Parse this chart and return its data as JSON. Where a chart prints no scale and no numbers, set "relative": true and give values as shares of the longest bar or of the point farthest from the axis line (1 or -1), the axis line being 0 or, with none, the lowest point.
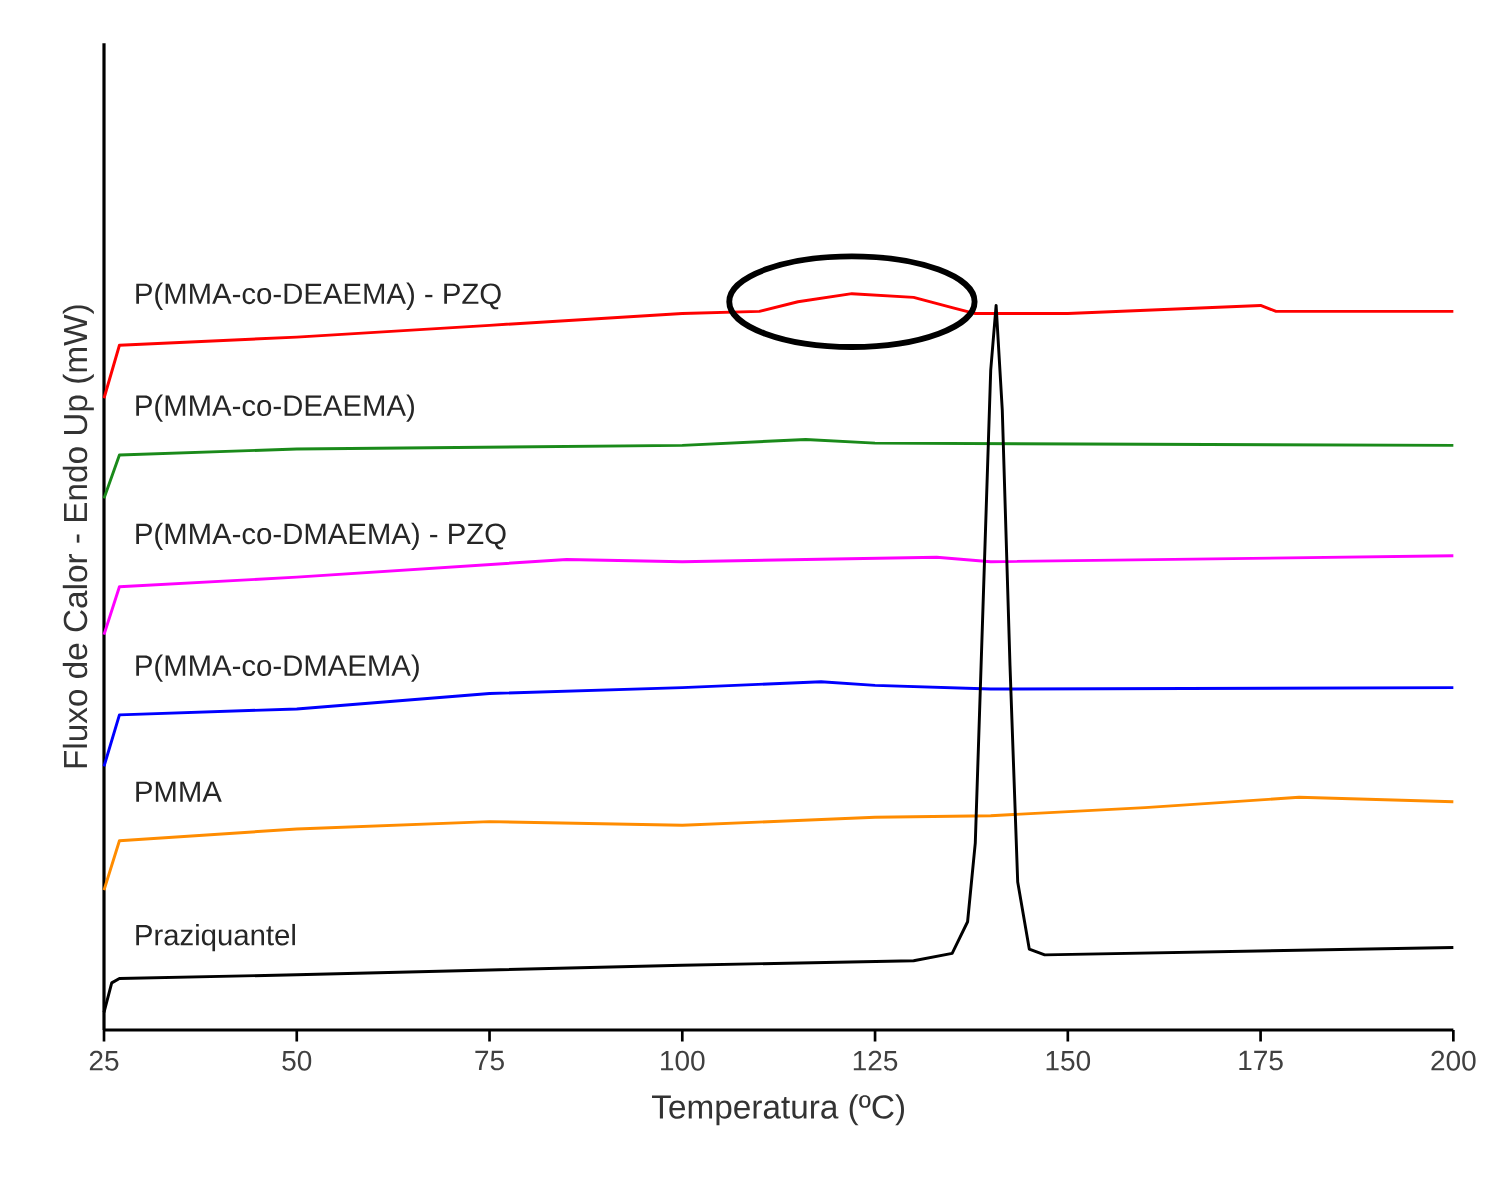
{
  "chart_data": {
    "type": "line",
    "relative": true,
    "xlabel": "Temperatura (ºC)",
    "ylabel": "Fluxo de Calor - Endo Up (mW)",
    "xlim": [
      25,
      200
    ],
    "xticks": [
      25,
      50,
      75,
      100,
      125,
      150,
      175,
      200
    ],
    "legend": false,
    "grid": false,
    "marker": "none",
    "line_style": "solid",
    "series": [
      {
        "name": "P(MMA-co-DEAEMA) - PZQ",
        "color": "#ff0000",
        "x": [
          25,
          27,
          50,
          75,
          100,
          110,
          115,
          122,
          130,
          135,
          138,
          150,
          175,
          177,
          200
        ],
        "values": [
          0.858,
          0.93,
          0.941,
          0.957,
          0.973,
          0.976,
          0.989,
          1.0,
          0.995,
          0.981,
          0.973,
          0.973,
          0.984,
          0.976,
          0.976
        ]
      },
      {
        "name": "P(MMA-co-DEAEMA)",
        "color": "#1a8a1a",
        "x": [
          25,
          27,
          50,
          100,
          116,
          125,
          200
        ],
        "values": [
          0.722,
          0.781,
          0.789,
          0.794,
          0.802,
          0.797,
          0.794
        ]
      },
      {
        "name": "P(MMA-co-DMAEMA) - PZQ",
        "color": "#ff00ff",
        "x": [
          25,
          27,
          50,
          85,
          100,
          133,
          140,
          200
        ],
        "values": [
          0.537,
          0.602,
          0.615,
          0.639,
          0.636,
          0.642,
          0.636,
          0.644
        ]
      },
      {
        "name": "P(MMA-co-DMAEMA)",
        "color": "#0000ff",
        "x": [
          25,
          27,
          50,
          75,
          100,
          118,
          125,
          140,
          200
        ],
        "values": [
          0.358,
          0.428,
          0.436,
          0.457,
          0.465,
          0.473,
          0.468,
          0.463,
          0.465
        ]
      },
      {
        "name": "PMMA",
        "color": "#ff8c00",
        "x": [
          25,
          27,
          50,
          75,
          100,
          125,
          140,
          160,
          180,
          200
        ],
        "values": [
          0.19,
          0.257,
          0.273,
          0.283,
          0.278,
          0.289,
          0.291,
          0.302,
          0.316,
          0.31
        ]
      },
      {
        "name": "Praziquantel",
        "color": "#000000",
        "x": [
          25,
          26,
          27,
          50,
          100,
          130,
          135,
          137,
          138,
          139,
          140,
          140.7,
          141.5,
          142.5,
          143.5,
          145,
          147,
          200
        ],
        "values": [
          0.024,
          0.064,
          0.07,
          0.075,
          0.088,
          0.094,
          0.104,
          0.147,
          0.254,
          0.575,
          0.896,
          0.984,
          0.842,
          0.495,
          0.201,
          0.11,
          0.102,
          0.112
        ]
      }
    ]
  }
}
